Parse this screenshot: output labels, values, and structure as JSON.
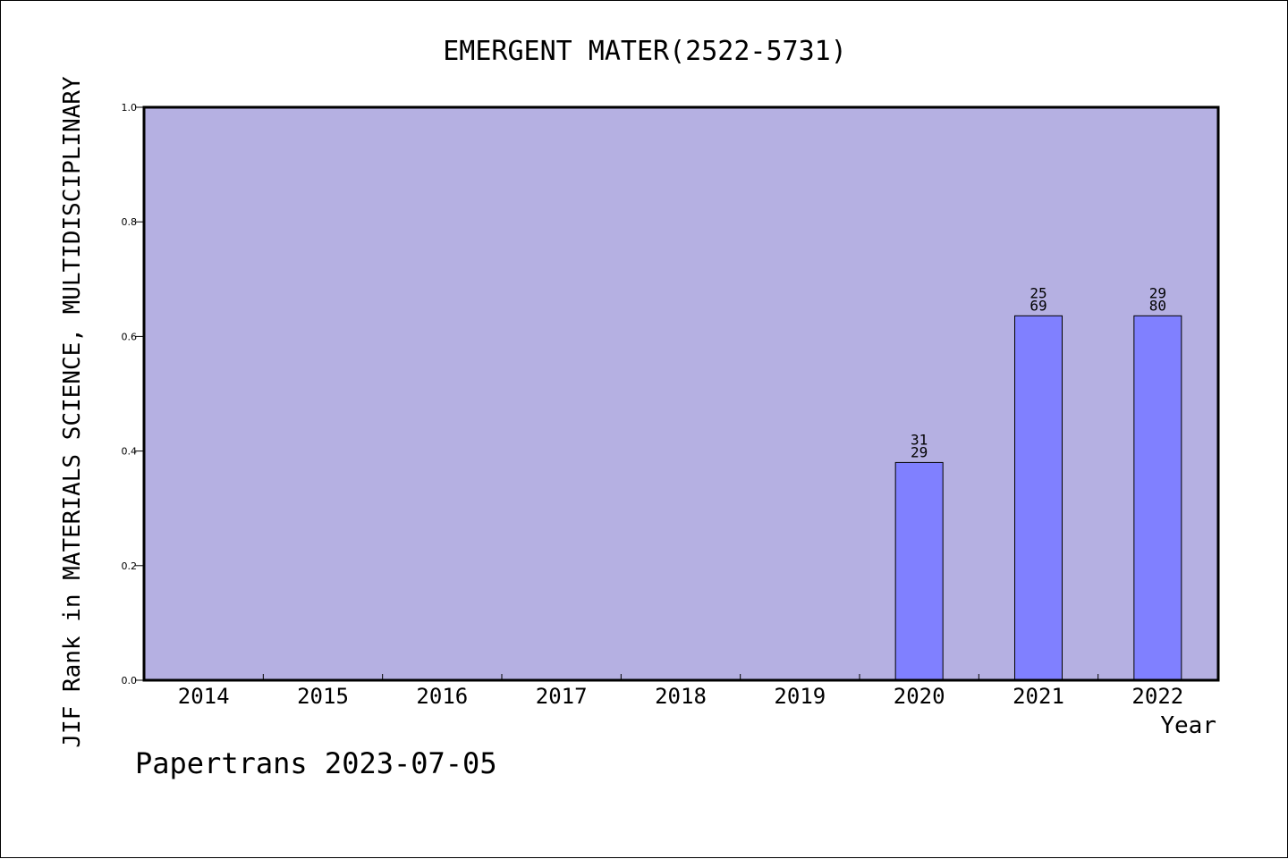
{
  "chart_data": {
    "type": "bar",
    "title": "EMERGENT MATER(2522-5731)",
    "xlabel": "Year",
    "ylabel": "JIF Rank in MATERIALS SCIENCE, MULTIDISCIPLINARY",
    "categories": [
      "2014",
      "2015",
      "2016",
      "2017",
      "2018",
      "2019",
      "2020",
      "2021",
      "2022"
    ],
    "values": [
      null,
      null,
      null,
      null,
      null,
      null,
      0.38,
      0.636,
      0.636
    ],
    "bar_labels": [
      null,
      null,
      null,
      null,
      null,
      null,
      [
        "31",
        "29"
      ],
      [
        "25",
        "69"
      ],
      [
        "29",
        "80"
      ]
    ],
    "ylim": [
      0,
      1.0
    ],
    "yticks": [
      "0.0",
      "0.2",
      "0.4",
      "0.6",
      "0.8",
      "1.0"
    ],
    "grid": false,
    "colors": {
      "plot_background": "#b5b0e2",
      "bar_fill": "#8080ff",
      "axis": "#000000"
    }
  },
  "footer": "Papertrans 2023-07-05"
}
